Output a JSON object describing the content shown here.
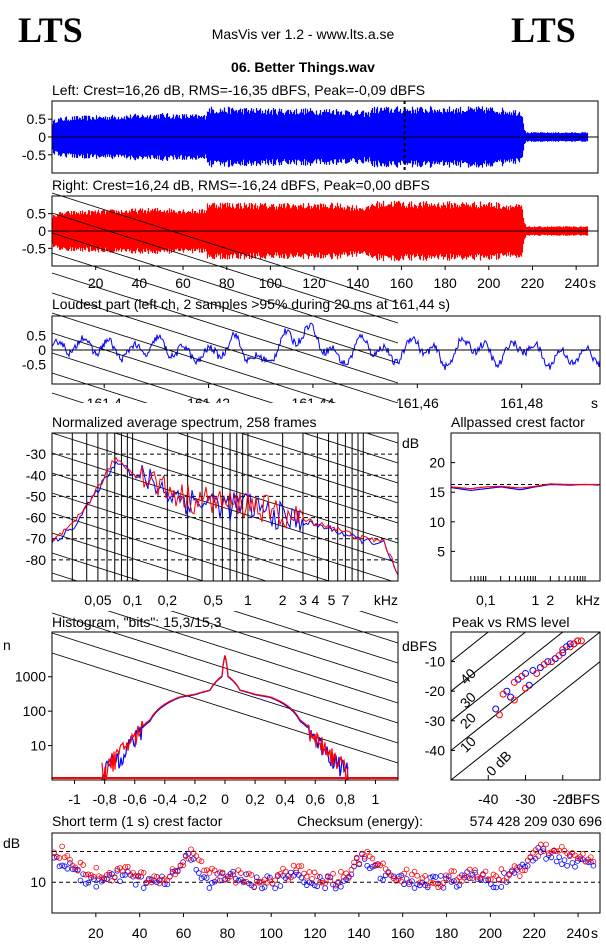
{
  "header": {
    "logo_left": "LTS",
    "logo_right": "LTS",
    "app_title": "MasVis ver 1.2 - www.lts.a.se",
    "file_name": "06. Better Things.wav"
  },
  "colors": {
    "left": "#0000ff",
    "right": "#ff0000"
  },
  "chart_data": [
    {
      "id": "left_waveform",
      "type": "area",
      "title": "Left: Crest=16,26 dB, RMS=-16,35 dBFS, Peak=-0,09 dBFS",
      "series": [
        {
          "name": "",
          "color": "#0000ff"
        }
      ],
      "envelope": {
        "x": [
          0,
          2,
          8,
          30,
          50,
          70,
          71,
          100,
          130,
          145,
          146,
          158,
          162,
          200,
          215,
          216,
          217,
          245
        ],
        "amplitude": [
          0.5,
          0.6,
          0.65,
          0.7,
          0.75,
          0.7,
          0.95,
          0.9,
          0.9,
          0.8,
          0.95,
          0.95,
          0.95,
          0.95,
          0.85,
          0.3,
          0.15,
          0.15
        ]
      },
      "marker_x": 161.44,
      "yticks": [
        "0.5",
        "0",
        "-0.5"
      ],
      "ylim": [
        -1,
        1
      ],
      "xlim": [
        0,
        250
      ]
    },
    {
      "id": "right_waveform",
      "type": "area",
      "title": "Right: Crest=16,24 dB, RMS=-16,24 dBFS, Peak=0,00 dBFS",
      "series": [
        {
          "name": "",
          "color": "#ff0000"
        }
      ],
      "envelope": {
        "x": [
          0,
          2,
          8,
          30,
          50,
          70,
          71,
          100,
          130,
          145,
          146,
          158,
          162,
          200,
          215,
          216,
          217,
          245
        ],
        "amplitude": [
          0.5,
          0.6,
          0.65,
          0.7,
          0.75,
          0.7,
          0.95,
          0.9,
          0.9,
          0.8,
          0.95,
          1.0,
          0.95,
          0.95,
          0.85,
          0.3,
          0.15,
          0.15
        ]
      },
      "yticks": [
        "0.5",
        "0",
        "-0.5"
      ],
      "xticks": [
        "20",
        "40",
        "60",
        "80",
        "100",
        "120",
        "140",
        "160",
        "180",
        "200",
        "220",
        "240",
        "s"
      ],
      "ylim": [
        -1,
        1
      ],
      "xlim": [
        0,
        250
      ]
    },
    {
      "id": "loudest_part",
      "type": "line",
      "title": "Loudest part (left  ch, 2 samples >95% during 20 ms at 161,44 s)",
      "series": [
        {
          "name": "",
          "color": "#0000ff"
        }
      ],
      "x": [
        161.39,
        161.395,
        161.4,
        161.405,
        161.41,
        161.415,
        161.42,
        161.425,
        161.43,
        161.435,
        161.44,
        161.445,
        161.45,
        161.455,
        161.46,
        161.465,
        161.47,
        161.475,
        161.48,
        161.485,
        161.49
      ],
      "y": [
        0.0,
        0.2,
        0.1,
        -0.1,
        0.2,
        -0.1,
        -0.2,
        0.3,
        -0.5,
        0.4,
        0.6,
        -0.4,
        0.3,
        -0.3,
        0.3,
        -0.4,
        0.3,
        -0.3,
        0.2,
        -0.3,
        -0.2
      ],
      "yticks": [
        "0.5",
        "0",
        "-0.5"
      ],
      "xticks": [
        "161,4",
        "161,42",
        "161,44",
        "161,46",
        "161,48",
        "s"
      ],
      "ylim": [
        -1,
        1
      ]
    },
    {
      "id": "spectrum",
      "type": "line",
      "title": "Normalized average spectrum, 258 frames",
      "ylabel": "dB",
      "xlabel": "kHz",
      "yticks": [
        "-30",
        "-40",
        "-50",
        "-60",
        "-70",
        "-80"
      ],
      "xticks": [
        "0,05",
        "0,1",
        "0,2",
        "0,5",
        "1",
        "2",
        "3",
        "4",
        "5",
        "7",
        "kHz"
      ],
      "ylim": [
        -90,
        -20
      ],
      "series": [
        {
          "name": "",
          "color": "#0000ff",
          "x": [
            0.02,
            0.03,
            0.04,
            0.05,
            0.06,
            0.07,
            0.08,
            0.1,
            0.15,
            0.2,
            0.3,
            0.5,
            0.7,
            1,
            2,
            3,
            5,
            7,
            10,
            15,
            20
          ],
          "y": [
            -72,
            -65,
            -55,
            -47,
            -40,
            -35,
            -33,
            -40,
            -43,
            -48,
            -52,
            -53,
            -55,
            -54,
            -60,
            -62,
            -65,
            -68,
            -71,
            -72,
            -88
          ]
        },
        {
          "name": "",
          "color": "#ff0000",
          "x": [
            0.02,
            0.03,
            0.04,
            0.05,
            0.06,
            0.07,
            0.08,
            0.1,
            0.15,
            0.2,
            0.3,
            0.5,
            0.7,
            1,
            2,
            3,
            5,
            7,
            10,
            15,
            20
          ],
          "y": [
            -71,
            -64,
            -54,
            -46,
            -39,
            -32,
            -34,
            -39,
            -42,
            -47,
            -51,
            -52,
            -54,
            -53,
            -59,
            -61,
            -64,
            -67,
            -70,
            -71,
            -87
          ]
        }
      ]
    },
    {
      "id": "allpassed_crest",
      "type": "line",
      "title": "Allpassed crest factor",
      "ylabel": "dB",
      "xlabel": "kHz",
      "yticks": [
        "20",
        "15",
        "10",
        "5"
      ],
      "xticks": [
        "0,1",
        "1",
        "2",
        "kHz"
      ],
      "ylim": [
        0,
        25
      ],
      "reference": 16.3,
      "series": [
        {
          "name": "",
          "color": "#0000ff",
          "x": [
            0.02,
            0.05,
            0.1,
            0.2,
            0.5,
            1,
            2,
            5,
            10,
            20
          ],
          "y": [
            15.8,
            15.3,
            15.6,
            15.9,
            15.4,
            15.9,
            16.3,
            16.2,
            16.3,
            16.2
          ]
        },
        {
          "name": "",
          "color": "#ff0000",
          "x": [
            0.02,
            0.05,
            0.1,
            0.2,
            0.5,
            1,
            2,
            5,
            10,
            20
          ],
          "y": [
            15.9,
            15.6,
            15.9,
            16.0,
            15.7,
            16.0,
            16.4,
            16.3,
            16.3,
            16.3
          ]
        }
      ]
    },
    {
      "id": "histogram",
      "type": "line",
      "title": "Histogram, \"bits\": 15,3/15,3",
      "ylabel": "n",
      "yticks": [
        "1000",
        "100",
        "10"
      ],
      "xticks": [
        "-1",
        "-0,8",
        "-0,6",
        "-0,4",
        "-0,2",
        "0",
        "0,2",
        "0,4",
        "0,6",
        "0,8",
        "1"
      ],
      "log_y": true,
      "series": [
        {
          "name": "",
          "color": "#0000ff",
          "x": [
            -0.8,
            -0.7,
            -0.6,
            -0.5,
            -0.4,
            -0.3,
            -0.2,
            -0.1,
            -0.02,
            0,
            0.02,
            0.1,
            0.2,
            0.3,
            0.4,
            0.5,
            0.6,
            0.7,
            0.8
          ],
          "y": [
            2,
            5,
            15,
            50,
            150,
            250,
            300,
            400,
            1000,
            4000,
            1000,
            400,
            300,
            250,
            150,
            50,
            15,
            5,
            2
          ]
        },
        {
          "name": "",
          "color": "#ff0000",
          "x": [
            -0.8,
            -0.7,
            -0.6,
            -0.5,
            -0.4,
            -0.3,
            -0.2,
            -0.1,
            -0.02,
            0,
            0.02,
            0.1,
            0.2,
            0.3,
            0.4,
            0.5,
            0.6,
            0.7,
            0.8
          ],
          "y": [
            2,
            6,
            17,
            55,
            160,
            260,
            310,
            410,
            1050,
            4200,
            1050,
            410,
            310,
            260,
            160,
            55,
            17,
            6,
            2
          ]
        }
      ]
    },
    {
      "id": "peak_vs_rms",
      "type": "scatter",
      "title": "Peak vs RMS level",
      "ylabel": "dBFS",
      "xlabel": "dBFS",
      "yticks": [
        "-10",
        "-20",
        "-30",
        "-40"
      ],
      "xticks": [
        "-40",
        "-30",
        "-20",
        "dBFS"
      ],
      "diagonal_labels": [
        "40",
        "30",
        "20",
        "10",
        "0 dB"
      ],
      "xlim": [
        -50,
        -10
      ],
      "ylim": [
        -50,
        0
      ],
      "series": [
        {
          "name": "",
          "color": "#0000ff",
          "x": [
            -35,
            -32,
            -30,
            -28,
            -26,
            -24,
            -22,
            -20,
            -19,
            -18,
            -17,
            -16,
            -38,
            -34,
            -29
          ],
          "y": [
            -20,
            -16,
            -14,
            -13,
            -12,
            -10,
            -9,
            -7,
            -5,
            -4,
            -4,
            -3,
            -26,
            -22,
            -18
          ]
        },
        {
          "name": "",
          "color": "#ff0000",
          "x": [
            -36,
            -33,
            -31,
            -27,
            -25,
            -23,
            -21,
            -20,
            -18,
            -17,
            -16,
            -15,
            -37,
            -33,
            -30
          ],
          "y": [
            -21,
            -17,
            -15,
            -14,
            -11,
            -10,
            -8,
            -6,
            -5,
            -4,
            -3,
            -3,
            -28,
            -23,
            -19
          ]
        }
      ]
    },
    {
      "id": "short_term_crest",
      "type": "scatter",
      "title": "Short term (1 s) crest factor",
      "checksum_label": "Checksum (energy):",
      "checksum_value": "574 428 209 030 696",
      "ylabel": "dB",
      "yticks": [
        "10"
      ],
      "xticks": [
        "20",
        "40",
        "60",
        "80",
        "100",
        "120",
        "140",
        "160",
        "180",
        "200",
        "220",
        "240",
        "s"
      ],
      "xlim": [
        0,
        250
      ],
      "series": [
        {
          "name": "",
          "color": "#0000ff",
          "x": [
            2,
            12,
            22,
            32,
            42,
            52,
            62,
            72,
            82,
            92,
            102,
            112,
            122,
            132,
            142,
            152,
            162,
            172,
            182,
            192,
            202,
            212,
            222,
            232,
            242
          ],
          "y": [
            14,
            11,
            10,
            11,
            10,
            10,
            14,
            10,
            11,
            10,
            10,
            11,
            10,
            10,
            14,
            11,
            10,
            10,
            10,
            11,
            10,
            11,
            15,
            14,
            13
          ]
        },
        {
          "name": "",
          "color": "#ff0000",
          "x": [
            4,
            14,
            24,
            34,
            44,
            54,
            64,
            74,
            84,
            94,
            104,
            114,
            124,
            134,
            144,
            154,
            164,
            174,
            184,
            194,
            204,
            214,
            224,
            234,
            244
          ],
          "y": [
            15,
            12,
            11,
            12,
            10,
            11,
            15,
            11,
            11,
            10,
            11,
            12,
            10,
            11,
            15,
            11,
            11,
            10,
            11,
            11,
            11,
            12,
            16,
            15,
            14
          ]
        }
      ]
    }
  ]
}
